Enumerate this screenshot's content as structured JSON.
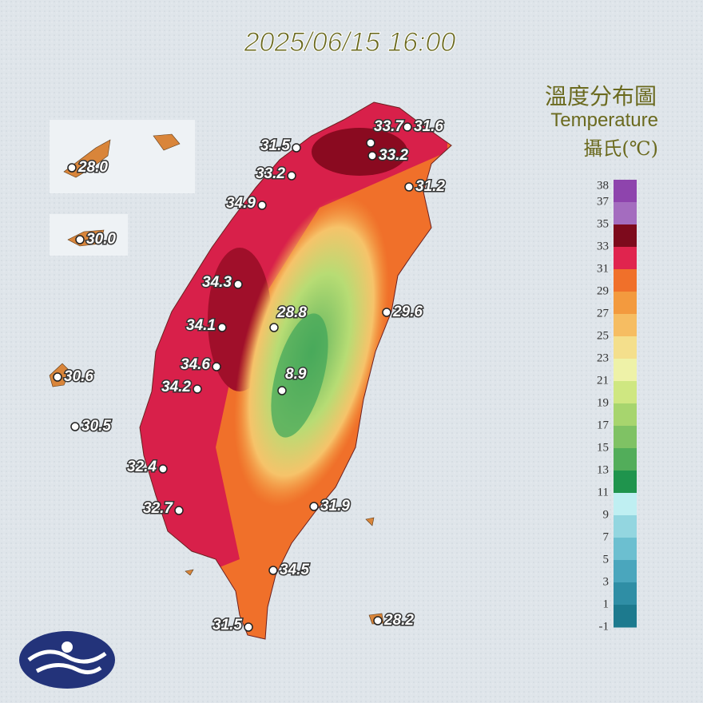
{
  "header": {
    "timestamp": "2025/06/15 16:00"
  },
  "legend": {
    "title_zh": "溫度分布圖",
    "title_en": "Temperature",
    "unit": "攝氏(℃)",
    "ticks": [
      38,
      37,
      35,
      33,
      31,
      29,
      27,
      25,
      23,
      21,
      19,
      17,
      15,
      13,
      11,
      9,
      7,
      5,
      3,
      1,
      -1
    ],
    "colors": [
      "#8e44ad",
      "#a46cbf",
      "#7d0a1c",
      "#e0244e",
      "#f0702a",
      "#f39a3e",
      "#f6bd62",
      "#f4df8c",
      "#eef2a8",
      "#cfe781",
      "#a7d56e",
      "#7fc264",
      "#52ad5a",
      "#1f944d",
      "#bfeff2",
      "#93d6e0",
      "#6cbfd0",
      "#4aa6bd",
      "#2f8ea5",
      "#1d7a8e"
    ]
  },
  "stations": [
    {
      "label": "28.0"
    },
    {
      "label": "30.0"
    },
    {
      "label": "30.6"
    },
    {
      "label": "30.5"
    },
    {
      "label": "31.5"
    },
    {
      "label": "33.7"
    },
    {
      "label": "31.6"
    },
    {
      "label": "33.2"
    },
    {
      "label": "33.2"
    },
    {
      "label": "31.2"
    },
    {
      "label": "34.9"
    },
    {
      "label": "34.3"
    },
    {
      "label": "28.8"
    },
    {
      "label": "29.6"
    },
    {
      "label": "34.1"
    },
    {
      "label": "34.6"
    },
    {
      "label": "8.9"
    },
    {
      "label": "34.2"
    },
    {
      "label": "32.4"
    },
    {
      "label": "32.7"
    },
    {
      "label": "31.9"
    },
    {
      "label": "34.5"
    },
    {
      "label": "31.5"
    },
    {
      "label": "28.2"
    }
  ]
}
